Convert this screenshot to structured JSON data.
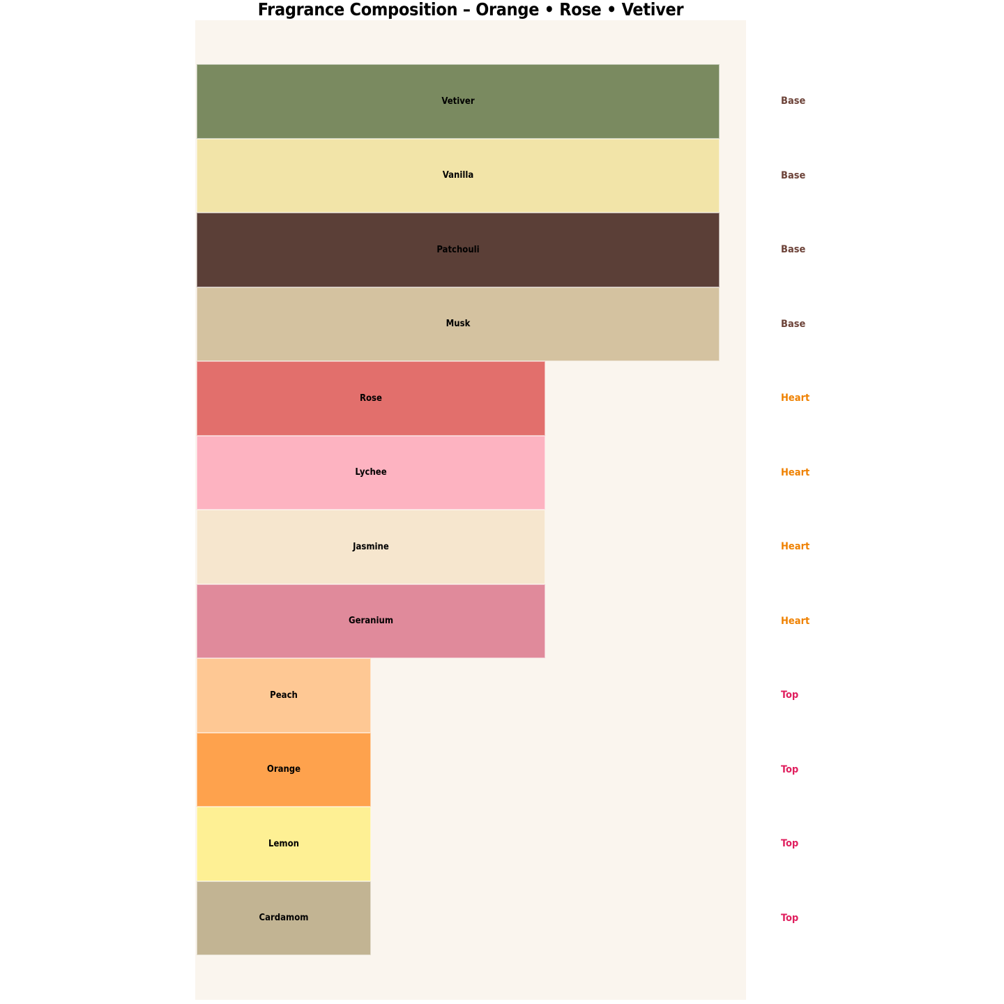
{
  "title": "Fragrance Composition – Orange • Rose • Vetiver",
  "chart_data": {
    "type": "bar",
    "orientation": "horizontal",
    "title": "Fragrance Composition – Orange • Rose • Vetiver",
    "grid": false,
    "axes_visible": false,
    "xlim": [
      0,
      31.5
    ],
    "value_scale": "relative width units estimated from bar lengths",
    "categories": [
      "Vetiver",
      "Vanilla",
      "Patchouli",
      "Musk",
      "Rose",
      "Lychee",
      "Jasmine",
      "Geranium",
      "Peach",
      "Orange",
      "Lemon",
      "Cardamom"
    ],
    "values": [
      30,
      30,
      30,
      30,
      20,
      20,
      20,
      20,
      10,
      10,
      10,
      10
    ],
    "notes": [
      {
        "label": "Vetiver",
        "tier": "Base",
        "value": 30,
        "color": "#7a8a60"
      },
      {
        "label": "Vanilla",
        "tier": "Base",
        "value": 30,
        "color": "#f2e4a8"
      },
      {
        "label": "Patchouli",
        "tier": "Base",
        "value": 30,
        "color": "#5b3f37"
      },
      {
        "label": "Musk",
        "tier": "Base",
        "value": 30,
        "color": "#d4c2a0"
      },
      {
        "label": "Rose",
        "tier": "Heart",
        "value": 20,
        "color": "#e26f6c"
      },
      {
        "label": "Lychee",
        "tier": "Heart",
        "value": 20,
        "color": "#fdb3c1"
      },
      {
        "label": "Jasmine",
        "tier": "Heart",
        "value": 20,
        "color": "#f6e6ce"
      },
      {
        "label": "Geranium",
        "tier": "Heart",
        "value": 20,
        "color": "#e08a9b"
      },
      {
        "label": "Peach",
        "tier": "Top",
        "value": 10,
        "color": "#fec894"
      },
      {
        "label": "Orange",
        "tier": "Top",
        "value": 10,
        "color": "#fea24d"
      },
      {
        "label": "Lemon",
        "tier": "Top",
        "value": 10,
        "color": "#fef094"
      },
      {
        "label": "Cardamom",
        "tier": "Top",
        "value": 10,
        "color": "#c2b493"
      }
    ],
    "tier_label_colors": {
      "Base": "#6d4339",
      "Heart": "#ef8100",
      "Top": "#e0205f"
    },
    "legend_position": "tier name printed to the right of each bar row",
    "colors": {
      "panel_background": "#faf5ee",
      "page_background": "#ffffff",
      "bar_label_text": "#000000"
    }
  }
}
